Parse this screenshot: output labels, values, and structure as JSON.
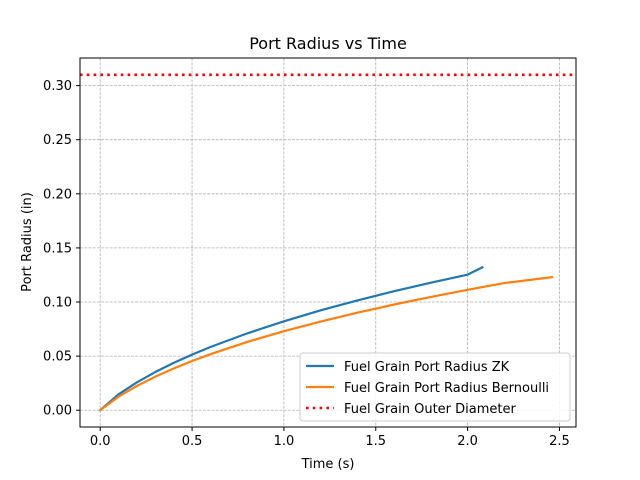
{
  "chart_data": {
    "type": "line",
    "title": "Port Radius vs Time",
    "xlabel": "Time (s)",
    "ylabel": "Port Radius (in)",
    "xlim": [
      -0.11,
      2.59
    ],
    "ylim": [
      -0.0155,
      0.3255
    ],
    "xticks": [
      0.0,
      0.5,
      1.0,
      1.5,
      2.0,
      2.5
    ],
    "xtick_labels": [
      "0.0",
      "0.5",
      "1.0",
      "1.5",
      "2.0",
      "2.5"
    ],
    "yticks": [
      0.0,
      0.05,
      0.1,
      0.15,
      0.2,
      0.25,
      0.3
    ],
    "ytick_labels": [
      "0.00",
      "0.05",
      "0.10",
      "0.15",
      "0.20",
      "0.25",
      "0.30"
    ],
    "grid": true,
    "legend_position": "lower-right",
    "series": [
      {
        "name": "Fuel Grain Port Radius ZK",
        "color": "#1f77b4",
        "style": "solid",
        "x": [
          0.0,
          0.1,
          0.2,
          0.3,
          0.4,
          0.5,
          0.6,
          0.8,
          1.0,
          1.2,
          1.4,
          1.6,
          1.8,
          2.0,
          2.08
        ],
        "y": [
          0.0,
          0.0147,
          0.0258,
          0.0353,
          0.0438,
          0.0514,
          0.0584,
          0.071,
          0.0822,
          0.0923,
          0.1015,
          0.11,
          0.1179,
          0.1253,
          0.132
        ]
      },
      {
        "name": "Fuel Grain Port Radius Bernoulli",
        "color": "#ff7f0e",
        "style": "solid",
        "x": [
          0.0,
          0.1,
          0.2,
          0.3,
          0.4,
          0.5,
          0.6,
          0.8,
          1.0,
          1.2,
          1.4,
          1.6,
          1.8,
          2.0,
          2.2,
          2.46
        ],
        "y": [
          0.0,
          0.0126,
          0.0225,
          0.031,
          0.0386,
          0.0455,
          0.0518,
          0.0631,
          0.073,
          0.0819,
          0.0901,
          0.0977,
          0.1047,
          0.1113,
          0.1175,
          0.123
        ]
      },
      {
        "name": "Fuel Grain Outer Diameter",
        "color": "#ff0000",
        "style": "dotted",
        "x": [
          -0.11,
          2.59
        ],
        "y": [
          0.31,
          0.31
        ]
      }
    ]
  }
}
